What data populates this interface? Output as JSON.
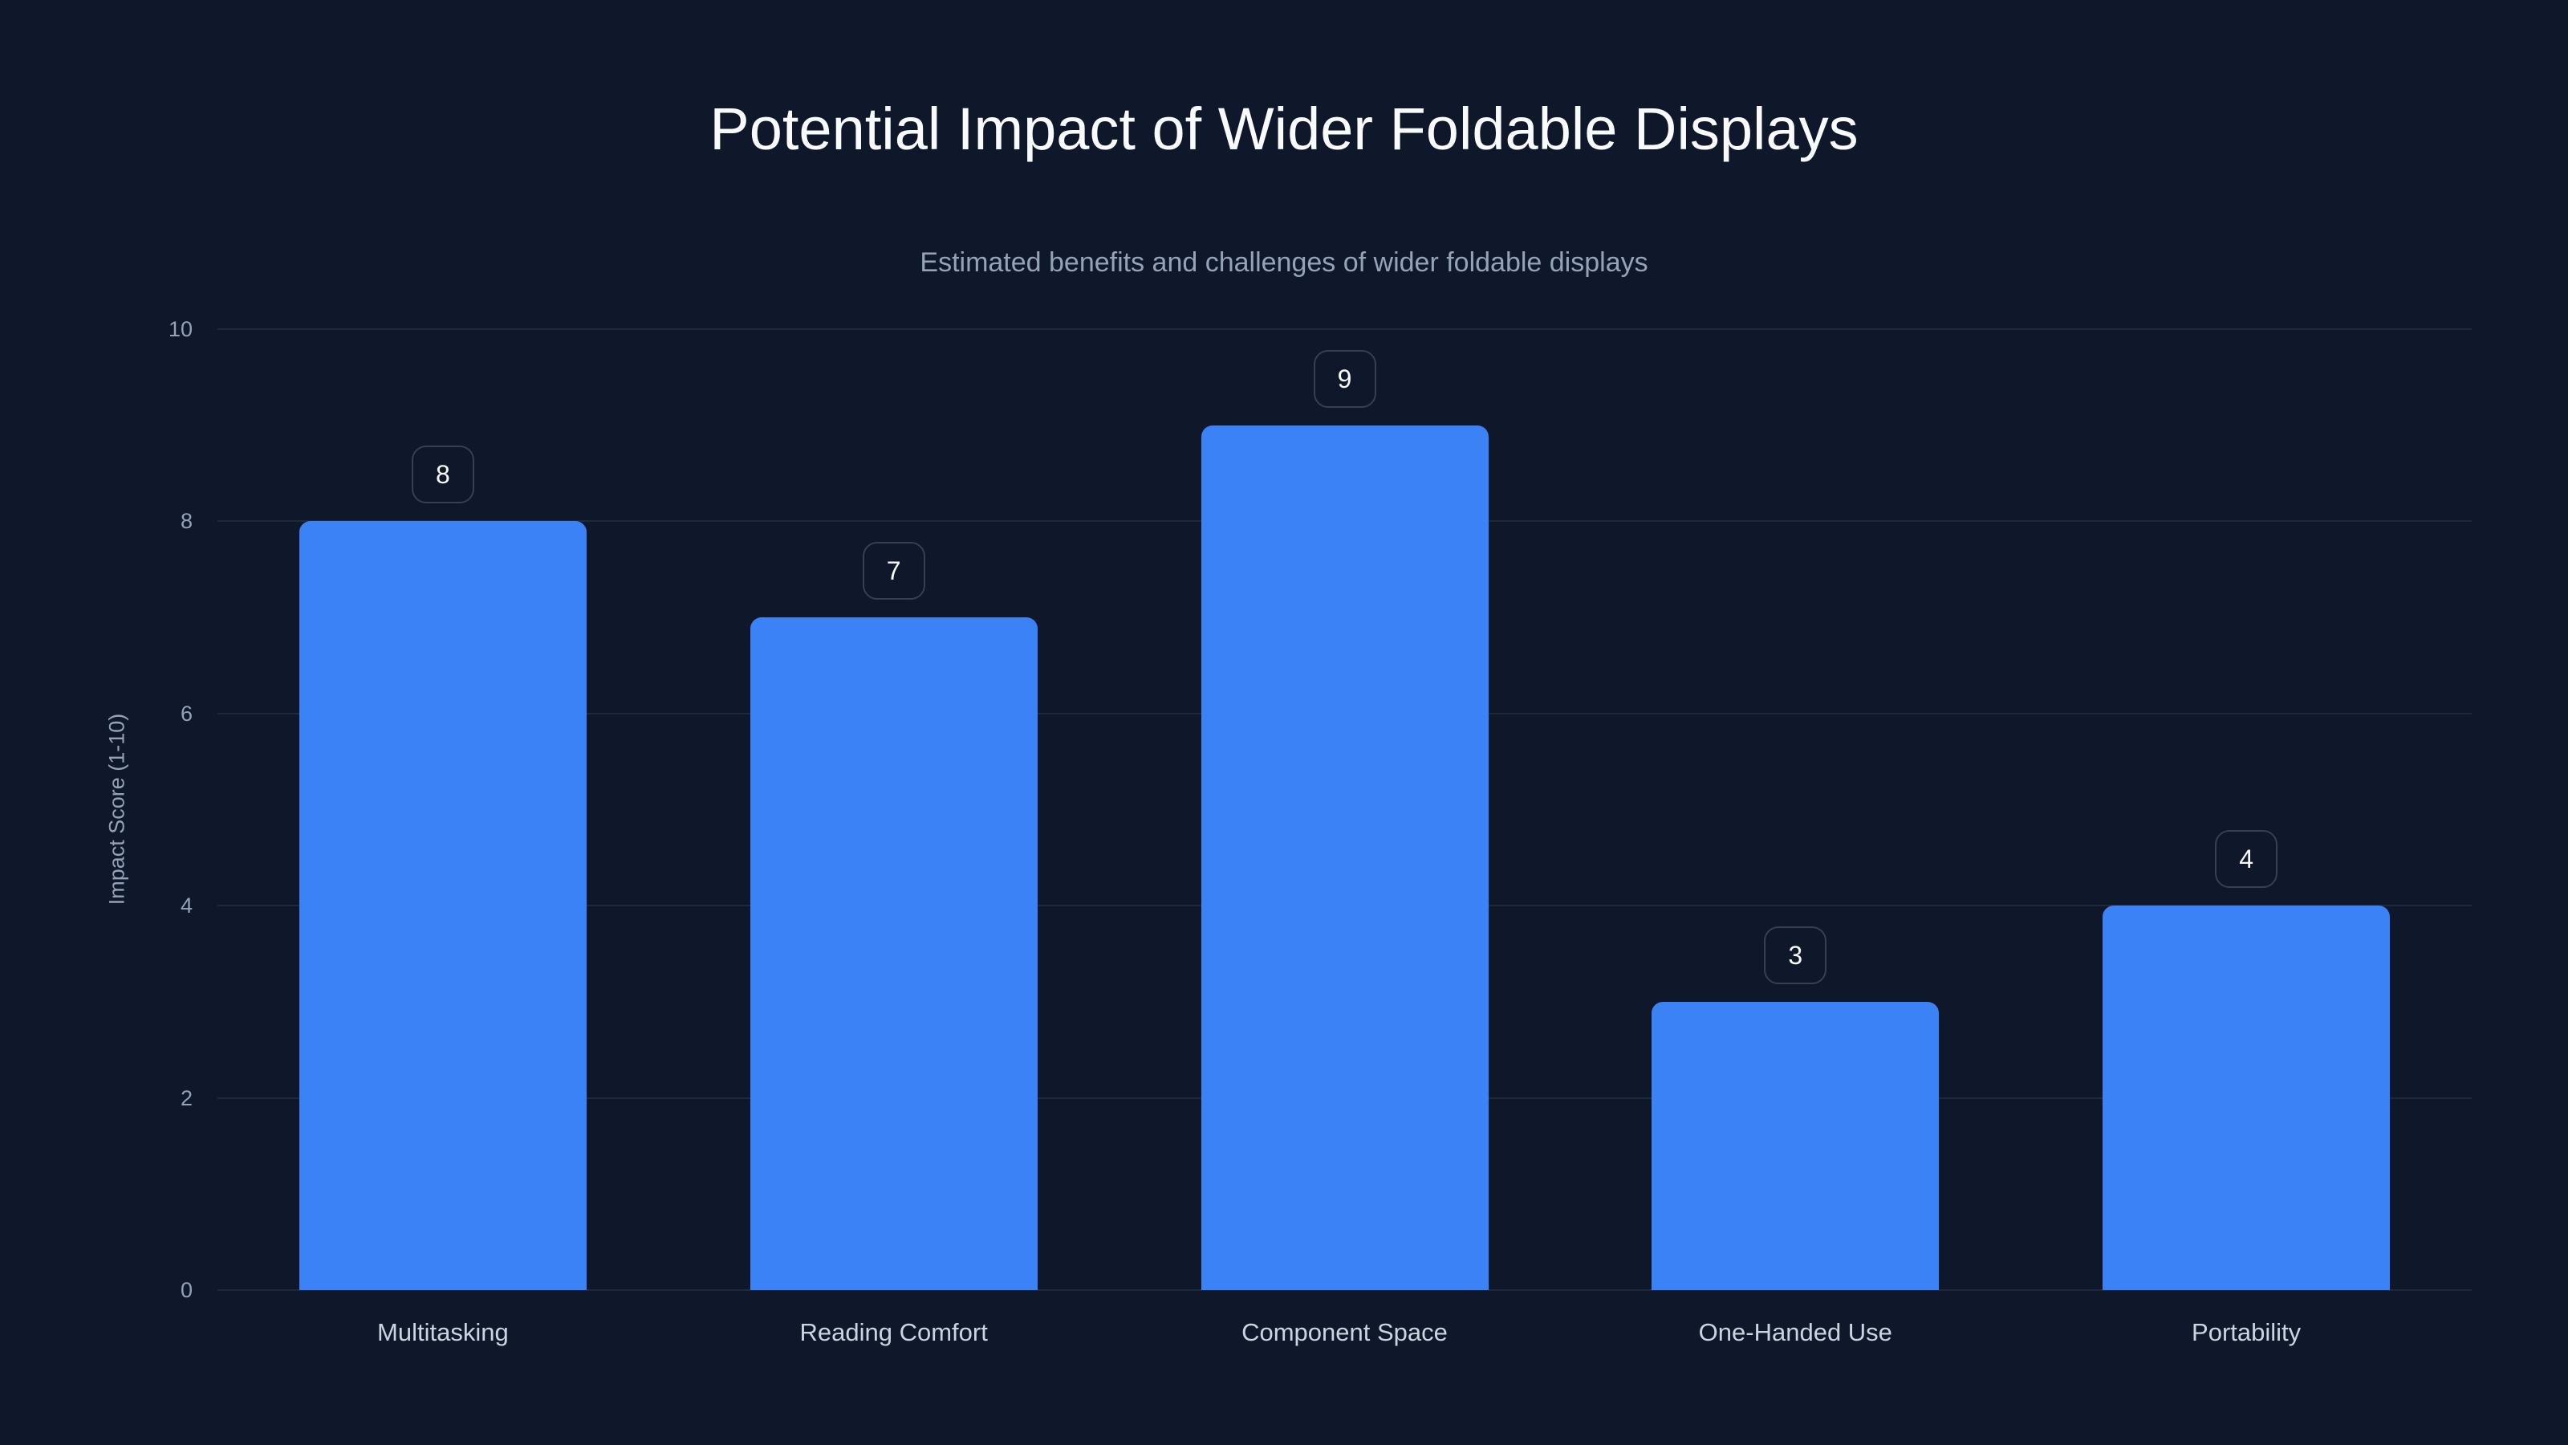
{
  "header": {
    "title": "Potential Impact of Wider Foldable Displays",
    "subtitle": "Estimated benefits and challenges of wider foldable displays"
  },
  "axes": {
    "y_label": "Impact Score (1-10)",
    "y_ticks": [
      "0",
      "2",
      "4",
      "6",
      "8",
      "10"
    ]
  },
  "bars": [
    {
      "label": "Multitasking",
      "value": "8"
    },
    {
      "label": "Reading Comfort",
      "value": "7"
    },
    {
      "label": "Component Space",
      "value": "9"
    },
    {
      "label": "One-Handed Use",
      "value": "3"
    },
    {
      "label": "Portability",
      "value": "4"
    }
  ],
  "colors": {
    "background": "#0f172a",
    "bar": "#3b82f6",
    "grid": "#1e293b",
    "badge_border": "#334155",
    "title": "#f8fafc",
    "muted_text": "#94a3b8",
    "category_text": "#cbd5e1"
  },
  "chart_data": {
    "type": "bar",
    "title": "Potential Impact of Wider Foldable Displays",
    "subtitle": "Estimated benefits and challenges of wider foldable displays",
    "categories": [
      "Multitasking",
      "Reading Comfort",
      "Component Space",
      "One-Handed Use",
      "Portability"
    ],
    "values": [
      8,
      7,
      9,
      3,
      4
    ],
    "xlabel": "",
    "ylabel": "Impact Score (1-10)",
    "ylim": [
      0,
      10
    ],
    "yticks": [
      0,
      2,
      4,
      6,
      8,
      10
    ],
    "grid": true,
    "legend": null,
    "data_labels": true
  }
}
